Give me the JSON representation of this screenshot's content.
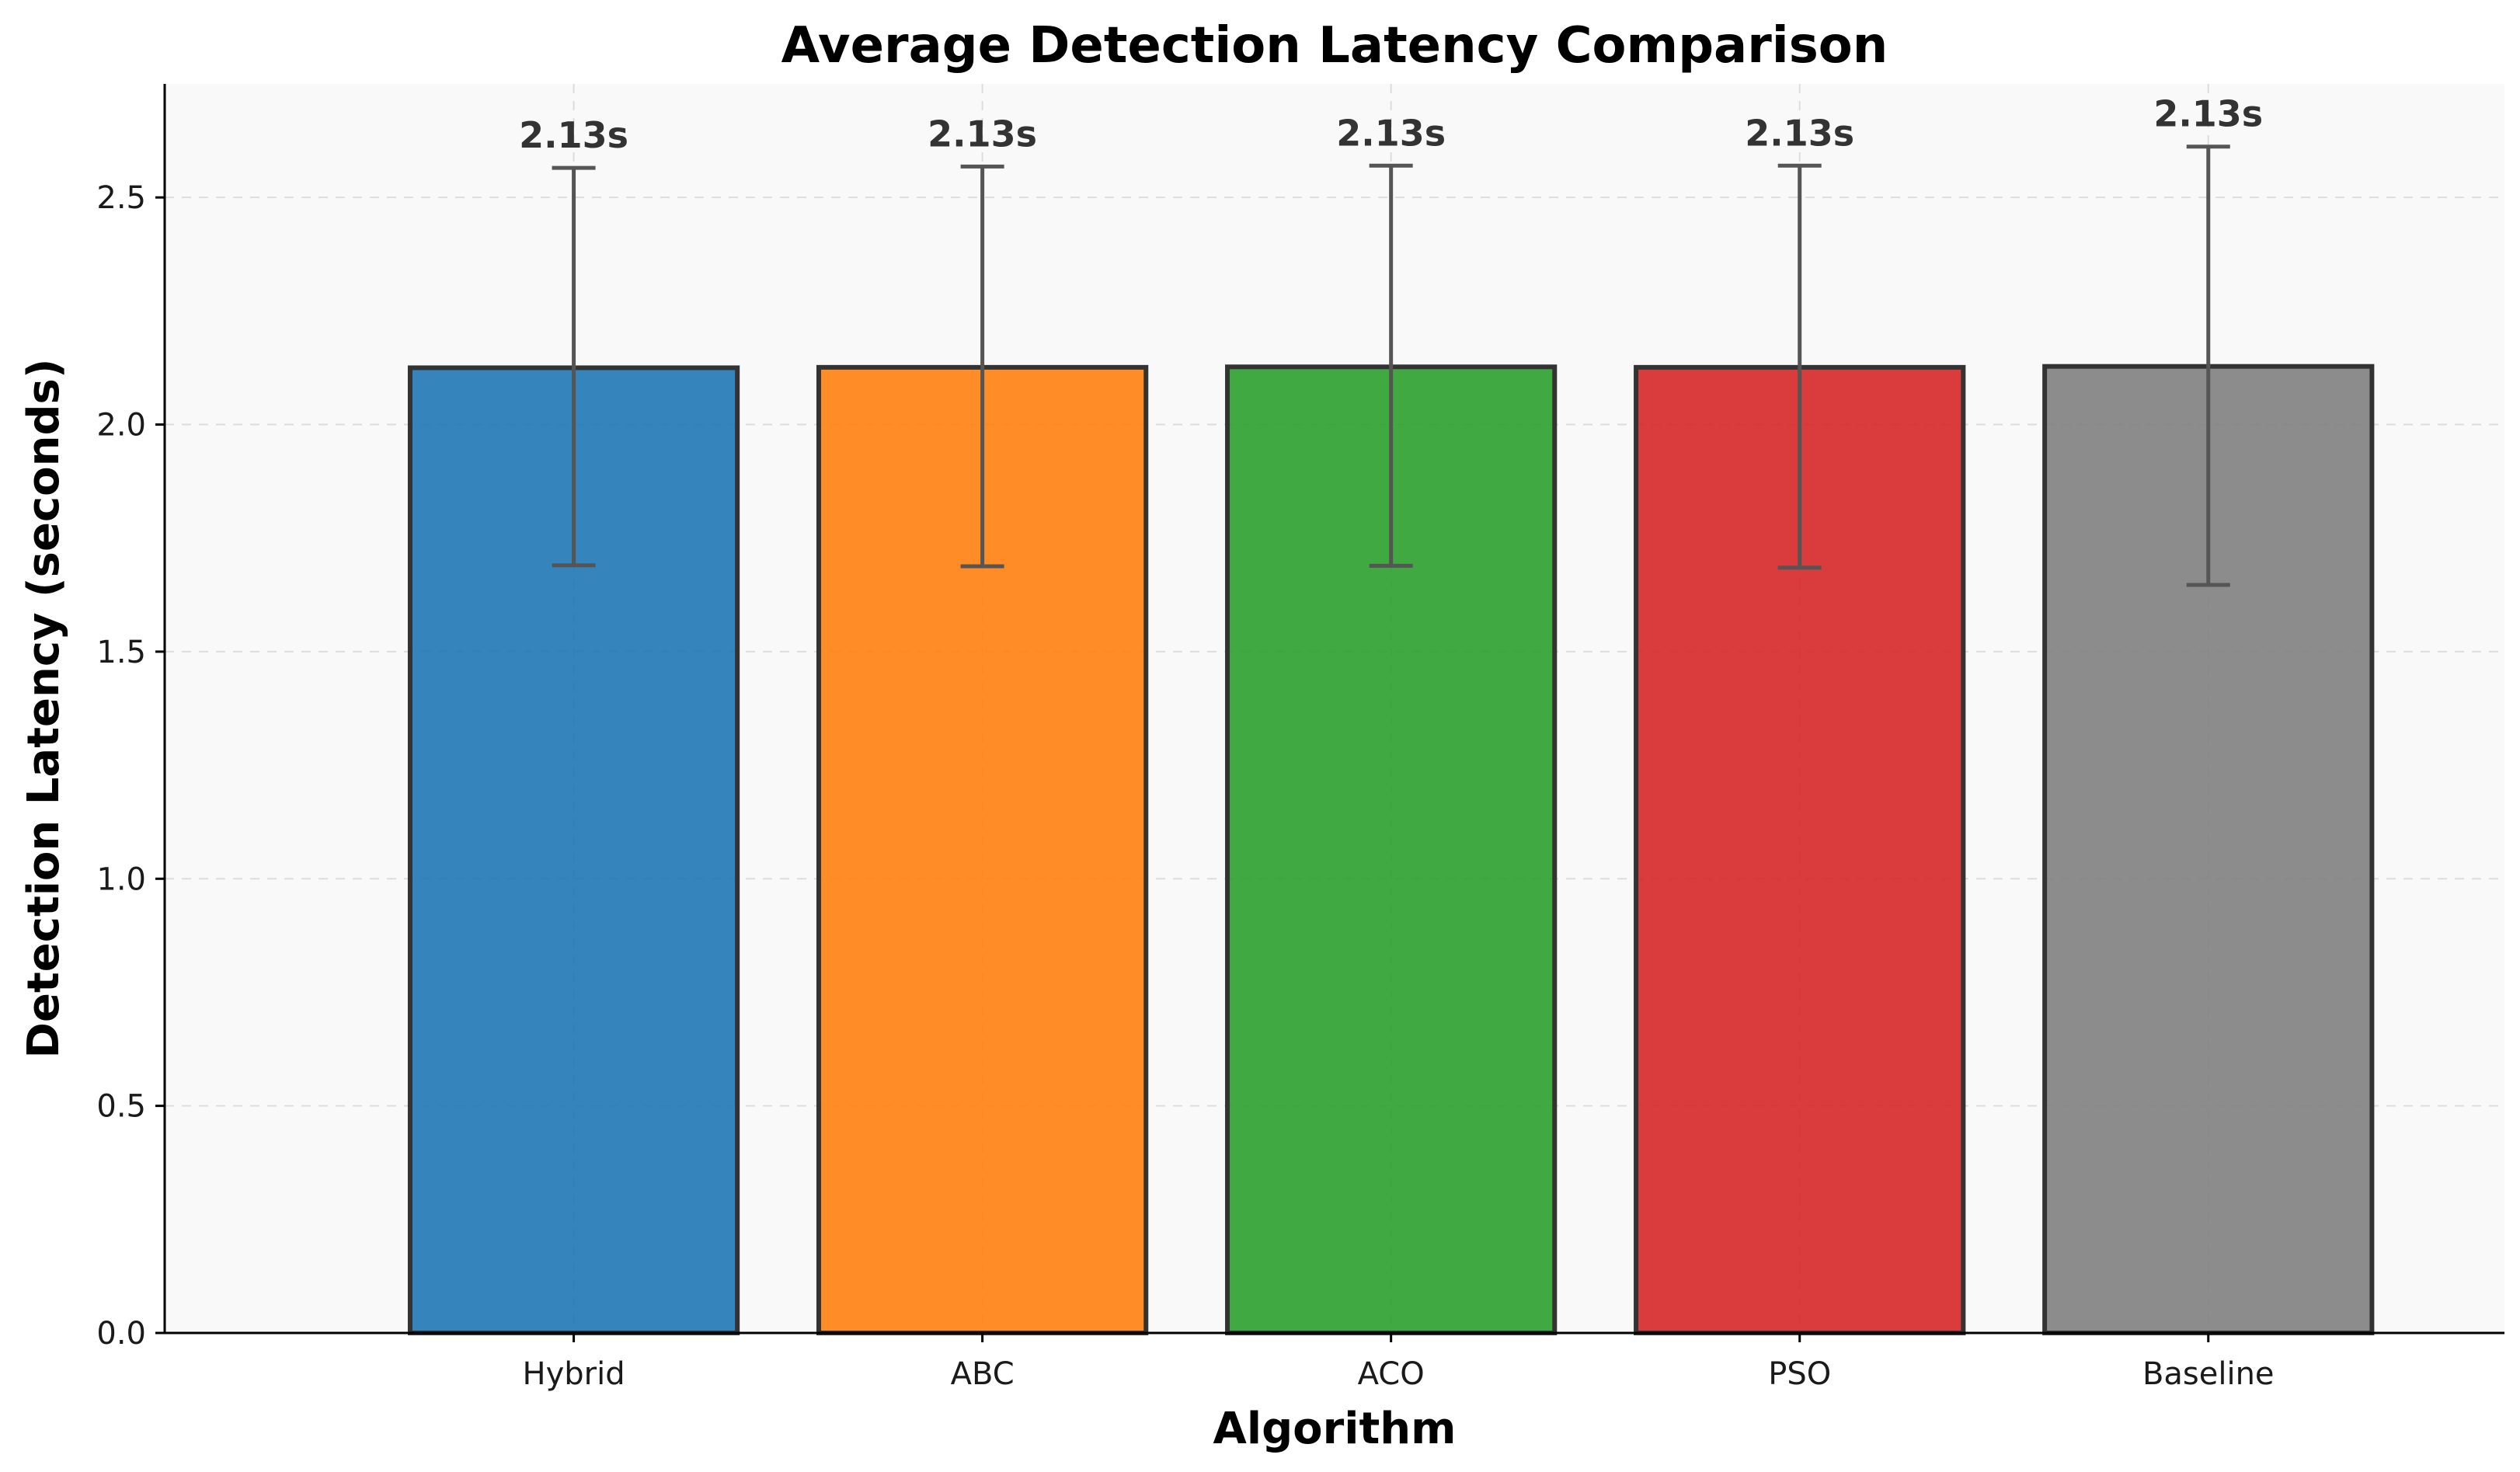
{
  "chart_data": {
    "type": "bar",
    "title": "Average Detection Latency Comparison",
    "xlabel": "Algorithm",
    "ylabel": "Detection Latency (seconds)",
    "categories": [
      "Hybrid",
      "ABC",
      "ACO",
      "PSO",
      "Baseline"
    ],
    "values": [
      2.125,
      2.126,
      2.127,
      2.126,
      2.128
    ],
    "error_upper": [
      2.565,
      2.568,
      2.57,
      2.57,
      2.612
    ],
    "error_lower": [
      1.69,
      1.688,
      1.689,
      1.685,
      1.647
    ],
    "data_labels": [
      "2.13s",
      "2.13s",
      "2.13s",
      "2.13s",
      "2.13s"
    ],
    "colors": [
      "#1f77b4",
      "#ff7f0e",
      "#2ca02c",
      "#d62728",
      "#7f7f7f"
    ],
    "edge_color": "#333333",
    "error_color": "#555555",
    "plot_background": "#f9f9f9",
    "ylim": [
      0,
      2.75
    ],
    "yticks": [
      0.0,
      0.5,
      1.0,
      1.5,
      2.0,
      2.5
    ],
    "ytick_labels": [
      "0.0",
      "0.5",
      "1.0",
      "1.5",
      "2.0",
      "2.5"
    ],
    "grid": true,
    "legend": "none"
  }
}
